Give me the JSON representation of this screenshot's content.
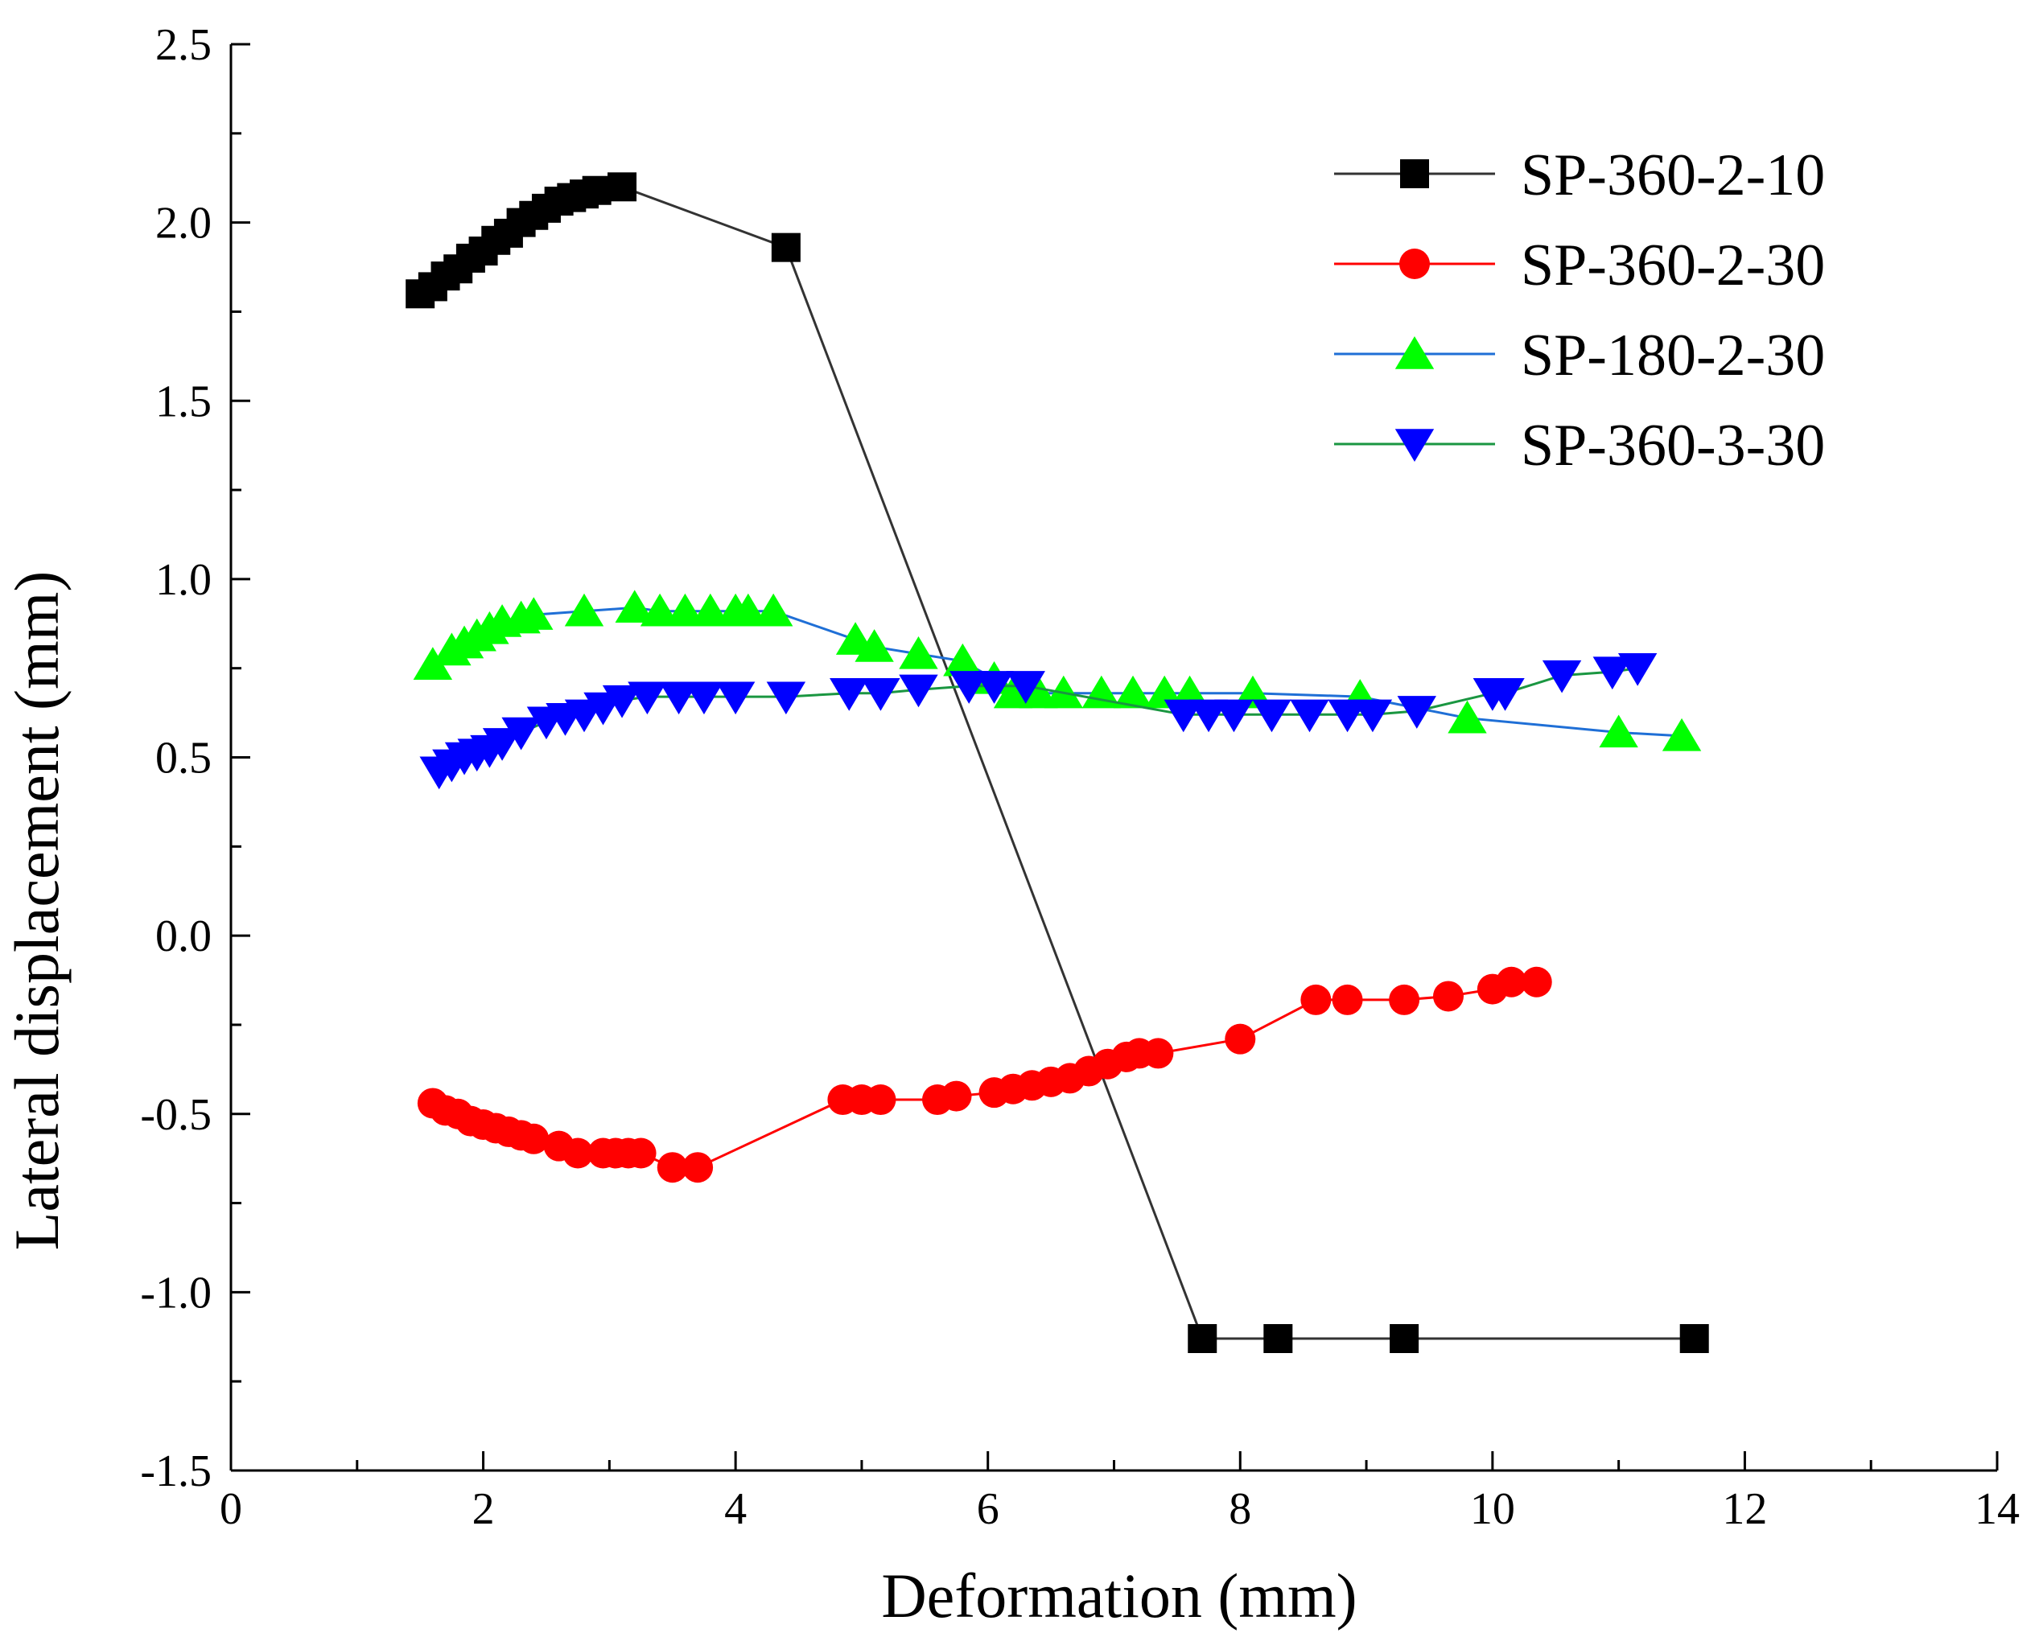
{
  "chart_data": {
    "type": "line",
    "title": "",
    "xlabel": "Deformation (mm)",
    "ylabel": "Lateral displacement (mm)",
    "xlim": [
      0,
      14
    ],
    "ylim": [
      -1.5,
      2.5
    ],
    "x_ticks": [
      0,
      2,
      4,
      6,
      8,
      10,
      12,
      14
    ],
    "x_tick_labels": [
      "0",
      "2",
      "4",
      "6",
      "8",
      "10",
      "12",
      "14"
    ],
    "y_ticks": [
      -1.5,
      -1.0,
      -0.5,
      0.0,
      0.5,
      1.0,
      1.5,
      2.0,
      2.5
    ],
    "y_tick_labels": [
      "-1.5",
      "-1.0",
      "-0.5",
      "0.0",
      "0.5",
      "1.0",
      "1.5",
      "2.0",
      "2.5"
    ],
    "grid": false,
    "legend_position": "top-right",
    "series": [
      {
        "name": "SP-360-2-10",
        "line_color": "#333333",
        "marker_color": "#000000",
        "marker": "square",
        "x": [
          1.5,
          1.6,
          1.7,
          1.8,
          1.9,
          2.0,
          2.1,
          2.2,
          2.3,
          2.4,
          2.5,
          2.6,
          2.7,
          2.8,
          2.9,
          3.1,
          4.4,
          7.7,
          8.3,
          9.3,
          11.6
        ],
        "y": [
          1.8,
          1.82,
          1.85,
          1.87,
          1.9,
          1.92,
          1.95,
          1.97,
          2.0,
          2.02,
          2.04,
          2.06,
          2.07,
          2.08,
          2.09,
          2.1,
          1.93,
          -1.13,
          -1.13,
          -1.13,
          -1.13
        ]
      },
      {
        "name": "SP-360-2-30",
        "line_color": "#ff0000",
        "marker_color": "#ff0000",
        "marker": "circle",
        "x": [
          1.6,
          1.7,
          1.8,
          1.9,
          2.0,
          2.1,
          2.2,
          2.3,
          2.4,
          2.6,
          2.75,
          2.95,
          3.05,
          3.15,
          3.25,
          3.5,
          3.7,
          4.85,
          5.0,
          5.15,
          5.6,
          5.75,
          6.05,
          6.2,
          6.35,
          6.5,
          6.65,
          6.8,
          6.95,
          7.1,
          7.2,
          7.35,
          8.0,
          8.6,
          8.85,
          9.3,
          9.65,
          10.0,
          10.15,
          10.35
        ],
        "y": [
          -0.47,
          -0.49,
          -0.5,
          -0.52,
          -0.53,
          -0.54,
          -0.55,
          -0.56,
          -0.57,
          -0.59,
          -0.61,
          -0.61,
          -0.61,
          -0.61,
          -0.61,
          -0.65,
          -0.65,
          -0.46,
          -0.46,
          -0.46,
          -0.46,
          -0.45,
          -0.44,
          -0.43,
          -0.42,
          -0.41,
          -0.4,
          -0.38,
          -0.36,
          -0.34,
          -0.33,
          -0.33,
          -0.29,
          -0.18,
          -0.18,
          -0.18,
          -0.17,
          -0.15,
          -0.13,
          -0.13
        ]
      },
      {
        "name": "SP-180-2-30",
        "line_color": "#1f6fd6",
        "marker_color": "#00ff00",
        "marker": "triangle-up",
        "x": [
          1.6,
          1.75,
          1.85,
          1.95,
          2.05,
          2.15,
          2.3,
          2.4,
          2.8,
          3.2,
          3.4,
          3.6,
          3.8,
          4.0,
          4.1,
          4.3,
          4.95,
          5.1,
          5.45,
          5.8,
          6.05,
          6.2,
          6.4,
          6.6,
          6.9,
          7.15,
          7.4,
          7.6,
          8.1,
          8.95,
          9.8,
          11.0,
          11.5
        ],
        "y": [
          0.76,
          0.8,
          0.82,
          0.84,
          0.86,
          0.88,
          0.89,
          0.9,
          0.91,
          0.92,
          0.91,
          0.91,
          0.91,
          0.91,
          0.91,
          0.91,
          0.83,
          0.81,
          0.79,
          0.77,
          0.72,
          0.68,
          0.68,
          0.68,
          0.68,
          0.68,
          0.68,
          0.68,
          0.68,
          0.67,
          0.61,
          0.57,
          0.56
        ]
      },
      {
        "name": "SP-360-3-30",
        "line_color": "#1a9641",
        "marker_color": "#0000ff",
        "marker": "triangle-down",
        "x": [
          1.65,
          1.75,
          1.85,
          1.95,
          2.05,
          2.15,
          2.3,
          2.5,
          2.65,
          2.8,
          2.95,
          3.1,
          3.3,
          3.55,
          3.75,
          4.0,
          4.4,
          4.9,
          5.15,
          5.45,
          5.85,
          6.05,
          6.3,
          7.55,
          7.75,
          7.95,
          8.25,
          8.55,
          8.85,
          9.05,
          9.4,
          10.0,
          10.1,
          10.55,
          10.95,
          11.15
        ],
        "y": [
          0.46,
          0.48,
          0.5,
          0.51,
          0.52,
          0.54,
          0.57,
          0.6,
          0.61,
          0.62,
          0.64,
          0.66,
          0.67,
          0.67,
          0.67,
          0.67,
          0.67,
          0.68,
          0.68,
          0.69,
          0.7,
          0.7,
          0.7,
          0.62,
          0.62,
          0.62,
          0.62,
          0.62,
          0.62,
          0.62,
          0.63,
          0.68,
          0.68,
          0.73,
          0.74,
          0.75
        ]
      }
    ]
  }
}
